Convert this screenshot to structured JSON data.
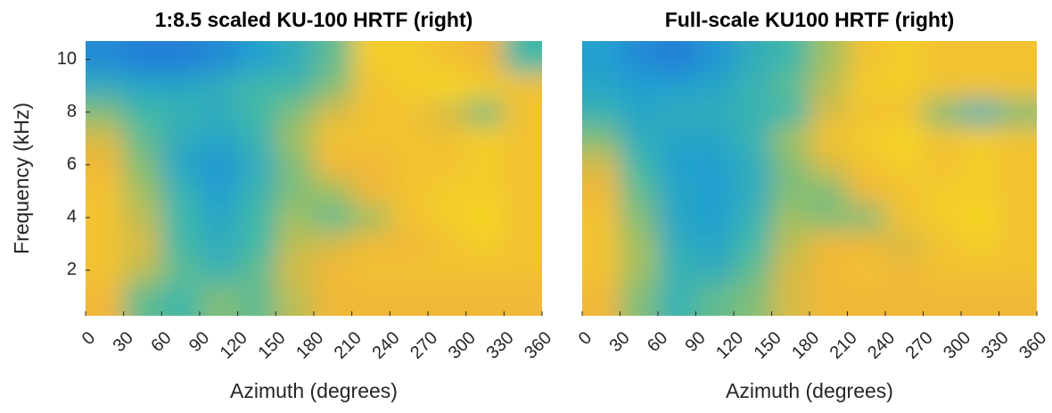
{
  "chart_data": [
    {
      "type": "heatmap",
      "title": "1:8.5 scaled KU-100 HRTF (right)",
      "xlabel": "Azimuth (degrees)",
      "ylabel": "Frequency (kHz)",
      "xlim": [
        0,
        360
      ],
      "ylim": [
        0.27,
        10.7
      ],
      "xticks": [
        0,
        30,
        60,
        90,
        120,
        150,
        180,
        210,
        240,
        270,
        300,
        330,
        360
      ],
      "yticks": [
        2,
        4,
        6,
        8,
        10
      ],
      "x": [
        15,
        45,
        75,
        105,
        135,
        165,
        195,
        225,
        255,
        285,
        315,
        345
      ],
      "y": [
        1,
        2,
        3,
        4,
        5,
        6,
        7,
        8,
        9,
        10
      ],
      "z": [
        [
          0.8,
          0.55,
          0.5,
          0.6,
          0.55,
          0.7,
          0.8,
          0.8,
          0.8,
          0.8,
          0.8,
          0.8
        ],
        [
          0.85,
          0.7,
          0.55,
          0.45,
          0.55,
          0.75,
          0.8,
          0.85,
          0.85,
          0.85,
          0.85,
          0.85
        ],
        [
          0.85,
          0.75,
          0.5,
          0.4,
          0.5,
          0.7,
          0.75,
          0.8,
          0.8,
          0.85,
          0.9,
          0.85
        ],
        [
          0.85,
          0.7,
          0.5,
          0.35,
          0.5,
          0.65,
          0.55,
          0.65,
          0.85,
          0.9,
          0.95,
          0.85
        ],
        [
          0.85,
          0.65,
          0.45,
          0.3,
          0.45,
          0.6,
          0.65,
          0.8,
          0.85,
          0.9,
          0.9,
          0.85
        ],
        [
          0.8,
          0.6,
          0.35,
          0.25,
          0.4,
          0.6,
          0.8,
          0.8,
          0.85,
          0.85,
          0.9,
          0.85
        ],
        [
          0.75,
          0.55,
          0.4,
          0.35,
          0.45,
          0.65,
          0.85,
          0.85,
          0.85,
          0.85,
          0.9,
          0.85
        ],
        [
          0.6,
          0.5,
          0.45,
          0.4,
          0.5,
          0.6,
          0.75,
          0.85,
          0.85,
          0.75,
          0.6,
          0.85
        ],
        [
          0.4,
          0.35,
          0.35,
          0.4,
          0.5,
          0.5,
          0.6,
          0.85,
          0.9,
          0.95,
          0.9,
          0.85
        ],
        [
          0.2,
          0.15,
          0.15,
          0.2,
          0.3,
          0.4,
          0.55,
          0.9,
          0.9,
          0.85,
          0.8,
          0.5
        ]
      ]
    },
    {
      "type": "heatmap",
      "title": "Full-scale KU100 HRTF (right)",
      "xlabel": "Azimuth (degrees)",
      "xlim": [
        0,
        360
      ],
      "ylim": [
        0.27,
        10.7
      ],
      "xticks": [
        0,
        30,
        60,
        90,
        120,
        150,
        180,
        210,
        240,
        270,
        300,
        330,
        360
      ],
      "x": [
        15,
        45,
        75,
        105,
        135,
        165,
        195,
        225,
        255,
        285,
        315,
        345
      ],
      "y": [
        1,
        2,
        3,
        4,
        5,
        6,
        7,
        8,
        9,
        10
      ],
      "z": [
        [
          0.8,
          0.6,
          0.45,
          0.55,
          0.6,
          0.75,
          0.8,
          0.8,
          0.8,
          0.8,
          0.8,
          0.8
        ],
        [
          0.85,
          0.65,
          0.45,
          0.4,
          0.55,
          0.75,
          0.8,
          0.85,
          0.8,
          0.85,
          0.85,
          0.85
        ],
        [
          0.85,
          0.65,
          0.4,
          0.35,
          0.5,
          0.7,
          0.8,
          0.8,
          0.75,
          0.85,
          0.9,
          0.85
        ],
        [
          0.85,
          0.6,
          0.35,
          0.3,
          0.45,
          0.65,
          0.6,
          0.6,
          0.85,
          0.9,
          0.95,
          0.85
        ],
        [
          0.8,
          0.55,
          0.35,
          0.3,
          0.4,
          0.6,
          0.6,
          0.8,
          0.85,
          0.9,
          0.9,
          0.85
        ],
        [
          0.75,
          0.5,
          0.3,
          0.3,
          0.4,
          0.6,
          0.75,
          0.85,
          0.9,
          0.85,
          0.9,
          0.85
        ],
        [
          0.6,
          0.4,
          0.35,
          0.35,
          0.45,
          0.65,
          0.85,
          0.9,
          0.95,
          0.85,
          0.9,
          0.85
        ],
        [
          0.45,
          0.35,
          0.4,
          0.4,
          0.45,
          0.5,
          0.75,
          0.85,
          0.85,
          0.6,
          0.45,
          0.6
        ],
        [
          0.35,
          0.3,
          0.3,
          0.35,
          0.45,
          0.55,
          0.7,
          0.9,
          0.9,
          0.85,
          0.85,
          0.85
        ],
        [
          0.3,
          0.2,
          0.15,
          0.25,
          0.4,
          0.5,
          0.65,
          0.85,
          0.9,
          0.85,
          0.85,
          0.85
        ]
      ]
    }
  ]
}
